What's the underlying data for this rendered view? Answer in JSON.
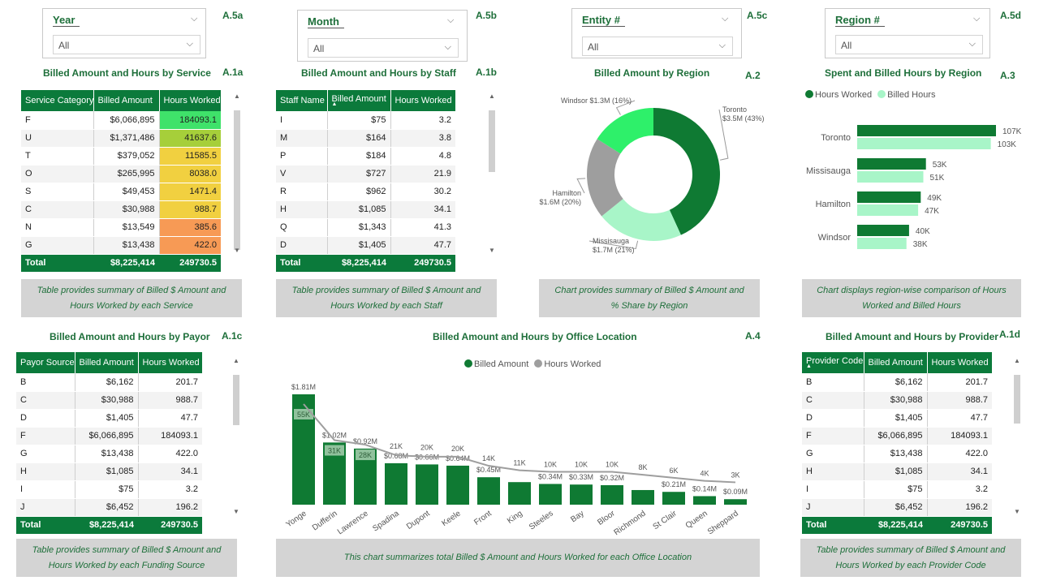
{
  "slicers": [
    {
      "id": "year",
      "label": "Year",
      "value": "All",
      "tag": "A.5a"
    },
    {
      "id": "month",
      "label": "Month",
      "value": "All",
      "tag": "A.5b"
    },
    {
      "id": "entity",
      "label": "Entity #",
      "value": "All",
      "tag": "A.5c"
    },
    {
      "id": "region",
      "label": "Region #",
      "value": "All",
      "tag": "A.5d"
    }
  ],
  "service_table": {
    "title": "Billed Amount and Hours by Service",
    "tag": "A.1a",
    "headers": [
      "Service Category",
      "Billed Amount",
      "Hours Worked"
    ],
    "rows": [
      [
        "F",
        "$6,066,895",
        "184093.1"
      ],
      [
        "U",
        "$1,371,486",
        "41637.6"
      ],
      [
        "T",
        "$379,052",
        "11585.5"
      ],
      [
        "O",
        "$265,995",
        "8038.0"
      ],
      [
        "S",
        "$49,453",
        "1471.4"
      ],
      [
        "C",
        "$30,988",
        "988.7"
      ],
      [
        "N",
        "$13,549",
        "385.6"
      ],
      [
        "G",
        "$13,438",
        "422.0"
      ]
    ],
    "heat_colors": [
      "#3fe26a",
      "#a6cf3a",
      "#f1d040",
      "#f1d040",
      "#f1d040",
      "#f1d040",
      "#f79a55",
      "#f79a55"
    ],
    "total": [
      "Total",
      "$8,225,414",
      "249730.5"
    ],
    "note": "Table provides summary of Billed $ Amount and Hours Worked by each Service"
  },
  "staff_table": {
    "title": "Billed Amount and Hours by Staff",
    "tag": "A.1b",
    "headers": [
      "Staff Name",
      "Billed Amount",
      "Hours Worked"
    ],
    "rows": [
      [
        "I",
        "$75",
        "3.2"
      ],
      [
        "M",
        "$164",
        "3.8"
      ],
      [
        "P",
        "$184",
        "4.8"
      ],
      [
        "V",
        "$727",
        "21.9"
      ],
      [
        "R",
        "$962",
        "30.2"
      ],
      [
        "H",
        "$1,085",
        "34.1"
      ],
      [
        "Q",
        "$1,343",
        "41.3"
      ],
      [
        "D",
        "$1,405",
        "47.7"
      ]
    ],
    "total": [
      "Total",
      "$8,225,414",
      "249730.5"
    ],
    "note": "Table provides summary of Billed $ Amount and Hours Worked by each Staff"
  },
  "region_donut": {
    "title": "Billed Amount by Region",
    "tag": "A.2",
    "note": "Chart provides summary of Billed $ Amount and % Share by Region",
    "slice_labels": [
      {
        "name": "Toronto",
        "value": "$3.5M (43%)"
      },
      {
        "name": "Missisauga",
        "value": "$1.7M (21%)"
      },
      {
        "name": "Hamilton",
        "value": "$1.6M (20%)"
      },
      {
        "name": "Windsor",
        "value": "$1.3M (16%)"
      }
    ]
  },
  "region_bars": {
    "title": "Spent and Billed Hours by Region",
    "tag": "A.3",
    "legend": [
      "Hours Worked",
      "Billed Hours"
    ],
    "note": "Chart displays region-wise comparison of Hours Worked and Billed Hours"
  },
  "payor_table": {
    "title": "Billed Amount and Hours by Payor",
    "tag": "A.1c",
    "headers": [
      "Payor Source",
      "Billed Amount",
      "Hours Worked"
    ],
    "rows": [
      [
        "B",
        "$6,162",
        "201.7"
      ],
      [
        "C",
        "$30,988",
        "988.7"
      ],
      [
        "D",
        "$1,405",
        "47.7"
      ],
      [
        "F",
        "$6,066,895",
        "184093.1"
      ],
      [
        "G",
        "$13,438",
        "422.0"
      ],
      [
        "H",
        "$1,085",
        "34.1"
      ],
      [
        "I",
        "$75",
        "3.2"
      ],
      [
        "J",
        "$6,452",
        "196.2"
      ]
    ],
    "total": [
      "Total",
      "$8,225,414",
      "249730.5"
    ],
    "note": "Table provides summary of Billed $ Amount and Hours Worked by each Funding Source"
  },
  "office_chart": {
    "title": "Billed Amount and Hours by Office Location",
    "tag": "A.4",
    "legend": [
      "Billed Amount",
      "Hours Worked"
    ],
    "note": "This chart summarizes total Billed $ Amount and Hours Worked for each Office Location"
  },
  "provider_table": {
    "title": "Billed Amount and Hours by Provider",
    "tag": "A.1d",
    "headers": [
      "Provider Code",
      "Billed Amount",
      "Hours Worked"
    ],
    "rows": [
      [
        "B",
        "$6,162",
        "201.7"
      ],
      [
        "C",
        "$30,988",
        "988.7"
      ],
      [
        "D",
        "$1,405",
        "47.7"
      ],
      [
        "F",
        "$6,066,895",
        "184093.1"
      ],
      [
        "G",
        "$13,438",
        "422.0"
      ],
      [
        "H",
        "$1,085",
        "34.1"
      ],
      [
        "I",
        "$75",
        "3.2"
      ],
      [
        "J",
        "$6,452",
        "196.2"
      ]
    ],
    "total": [
      "Total",
      "$8,225,414",
      "249730.5"
    ],
    "note": "Table provides summary of Billed $ Amount and Hours Worked by each Provider Code"
  },
  "colors": {
    "header_green": "#0b7a3b",
    "dark_green": "#0f7a33",
    "bright_green": "#2ef06a",
    "mint": "#a8f5c8",
    "gray": "#9e9e9e"
  },
  "chart_data": [
    {
      "type": "pie",
      "title": "Billed Amount by Region",
      "categories": [
        "Toronto",
        "Missisauga",
        "Hamilton",
        "Windsor"
      ],
      "values": [
        3.5,
        1.7,
        1.6,
        1.3
      ],
      "percents": [
        43,
        21,
        20,
        16
      ],
      "unit": "$M",
      "colors": [
        "#0f7a33",
        "#a8f5c8",
        "#9e9e9e",
        "#2ef06a"
      ],
      "donut": true
    },
    {
      "type": "bar",
      "orientation": "horizontal",
      "title": "Spent and Billed Hours by Region",
      "categories": [
        "Toronto",
        "Missisauga",
        "Hamilton",
        "Windsor"
      ],
      "series": [
        {
          "name": "Hours Worked",
          "values": [
            107,
            53,
            49,
            40
          ],
          "labels": [
            "107K",
            "53K",
            "49K",
            "40K"
          ],
          "color": "#0f7a33"
        },
        {
          "name": "Billed Hours",
          "values": [
            103,
            51,
            47,
            38
          ],
          "labels": [
            "103K",
            "51K",
            "47K",
            "38K"
          ],
          "color": "#a8f5c8"
        }
      ],
      "legend": "top-left"
    },
    {
      "type": "bar",
      "title": "Billed Amount and Hours by Office Location",
      "categories": [
        "Yonge",
        "Dufferin",
        "Lawrence",
        "Spadina",
        "Dupont",
        "Keele",
        "Front",
        "King",
        "Steeles",
        "Bay",
        "Bloor",
        "Richmond",
        "St Clair",
        "Queen",
        "Sheppard"
      ],
      "series": [
        {
          "name": "Billed Amount",
          "values": [
            1.81,
            1.02,
            0.92,
            0.68,
            0.66,
            0.64,
            0.45,
            0.37,
            0.34,
            0.33,
            0.32,
            0.24,
            0.21,
            0.14,
            0.09
          ],
          "labels": [
            "$1.81M",
            "$1.02M",
            "$0.92M",
            "$0.68M",
            "$0.66M",
            "$0.64M",
            "$0.45M",
            "",
            "$0.34M",
            "$0.33M",
            "$0.32M",
            "",
            "$0.21M",
            "$0.14M",
            "$0.09M"
          ],
          "color": "#0f7a33"
        },
        {
          "name": "Hours Worked",
          "values": [
            55,
            31,
            28,
            21,
            20,
            20,
            14,
            11,
            10,
            10,
            10,
            8,
            6,
            4,
            3
          ],
          "labels": [
            "55K",
            "31K",
            "28K",
            "21K",
            "20K",
            "20K",
            "14K",
            "11K",
            "10K",
            "10K",
            "10K",
            "8K",
            "6K",
            "4K",
            "3K"
          ],
          "color": "#9e9e9e"
        }
      ],
      "legend": "top-center"
    }
  ]
}
